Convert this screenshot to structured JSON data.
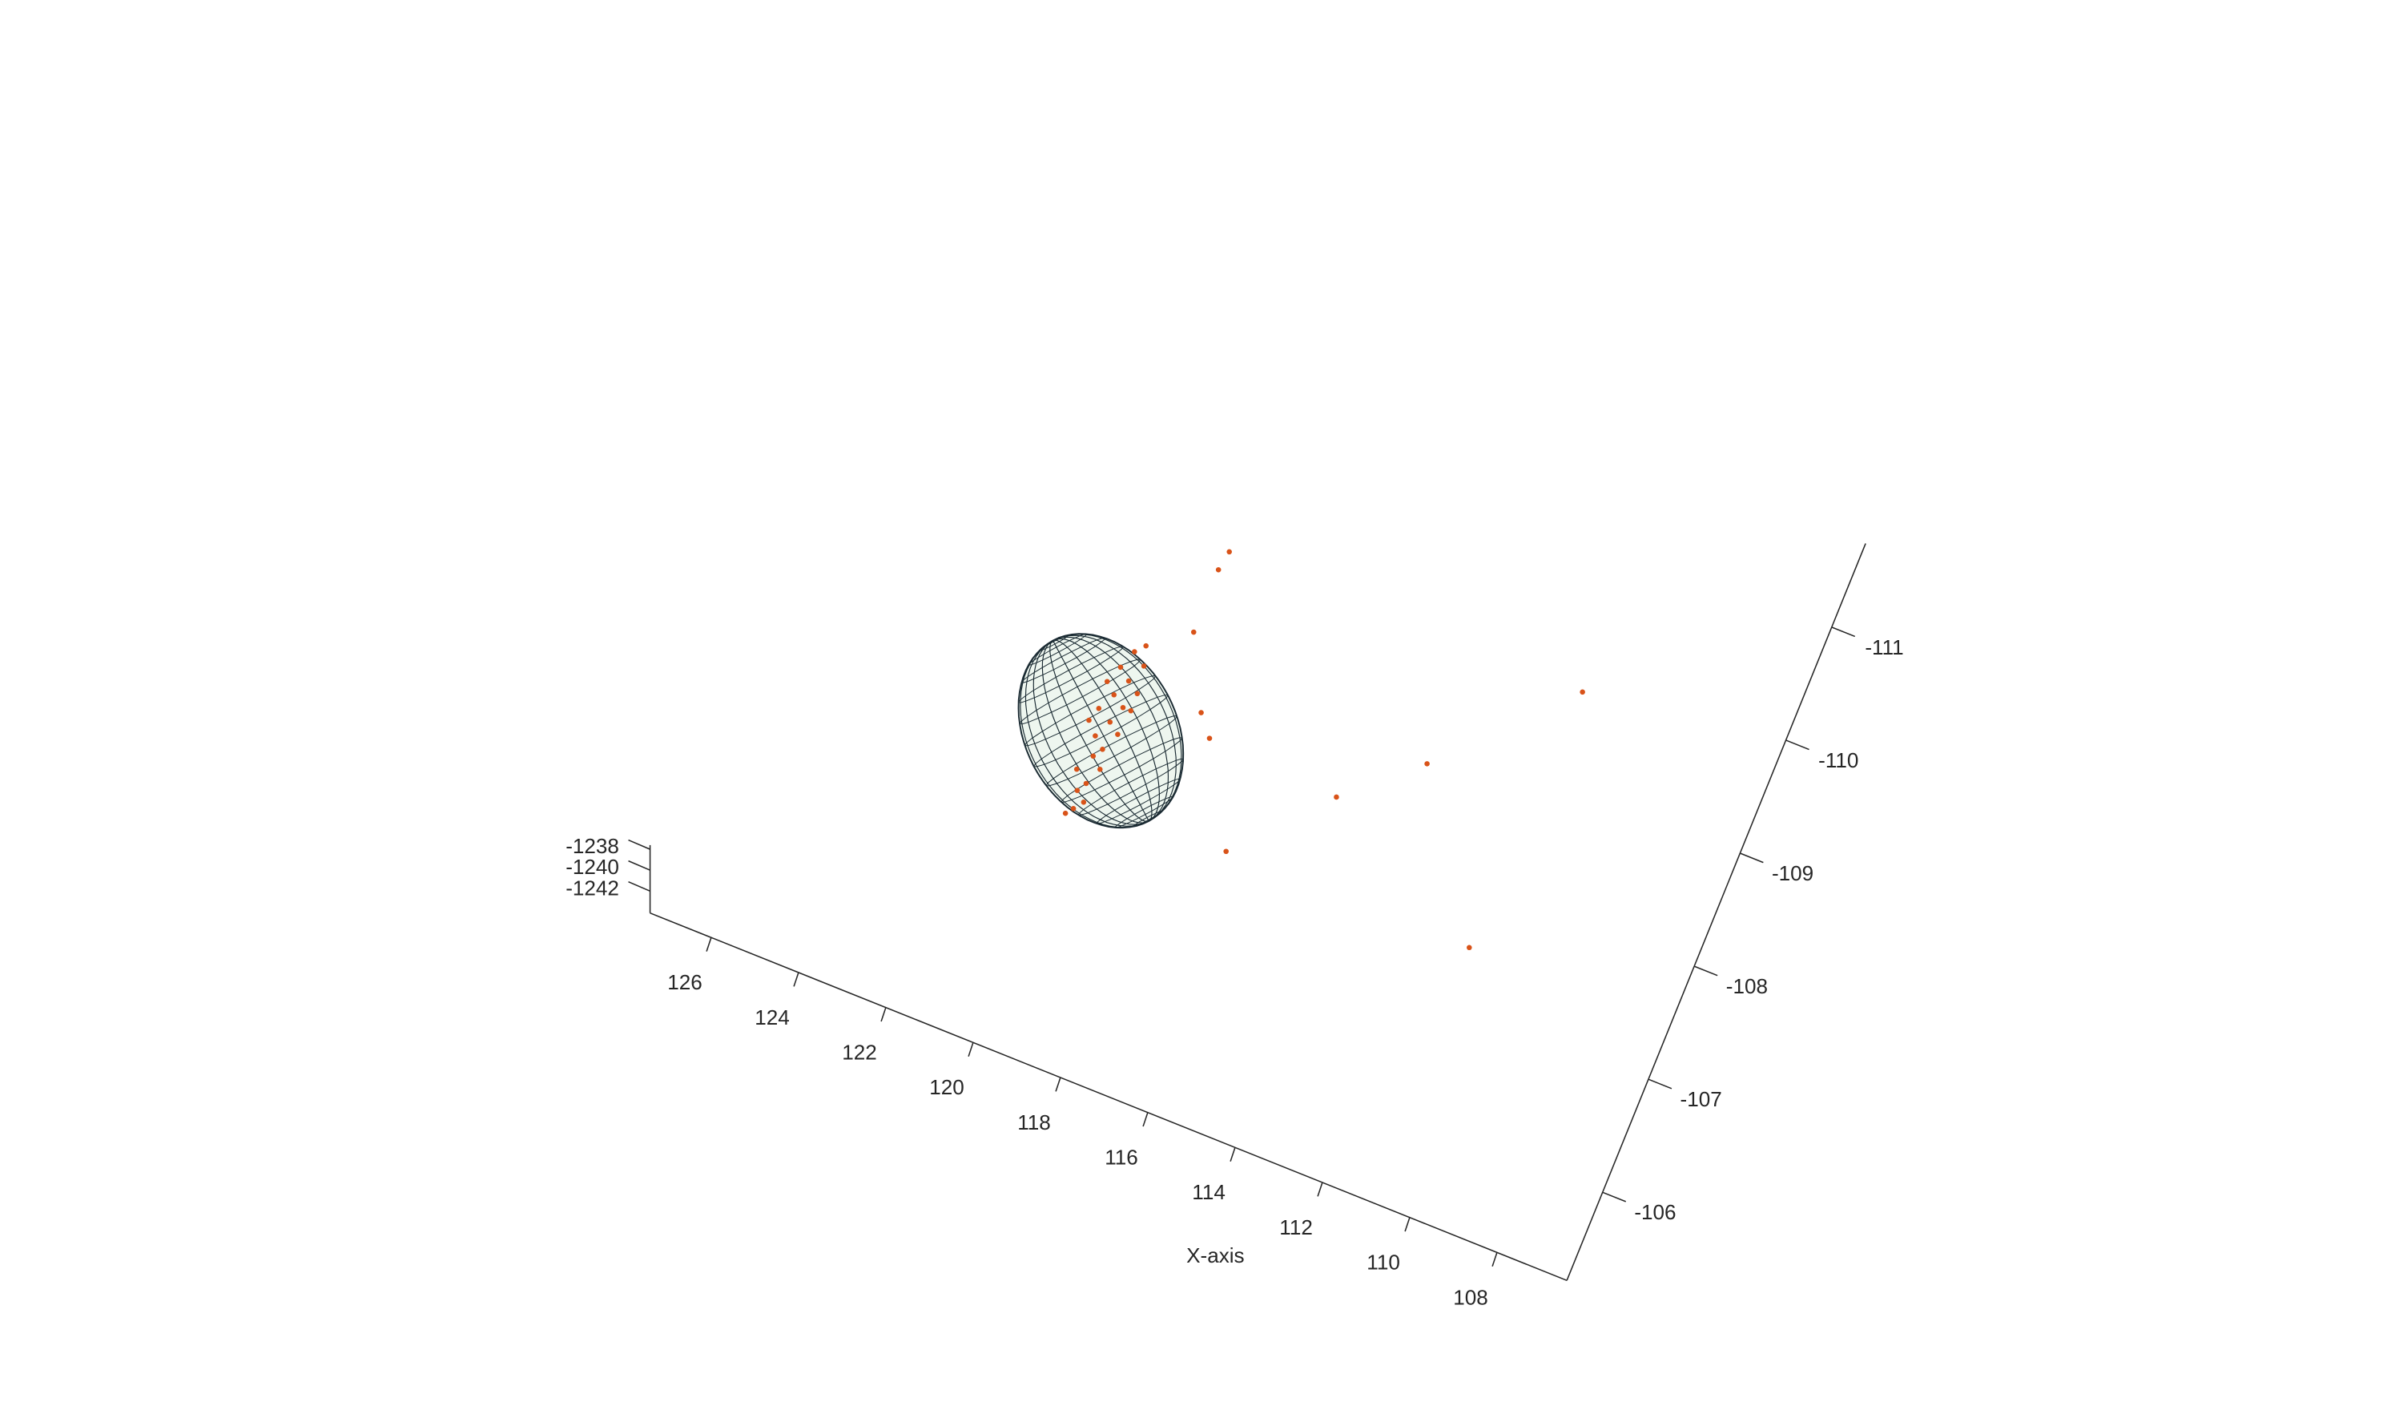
{
  "chart_data": {
    "type": "scatter3d",
    "xlabel": "X-axis",
    "xlim": [
      106.4,
      127.4
    ],
    "ylim": [
      -111.74,
      -105.22
    ],
    "zlim": [
      -1244.1,
      -1237.6
    ],
    "xticks": [
      108,
      110,
      112,
      114,
      116,
      118,
      120,
      122,
      124,
      126
    ],
    "yticks": [
      -111,
      -110,
      -109,
      -108,
      -107,
      -106
    ],
    "zticks": [
      -1242,
      -1240,
      -1238
    ],
    "color": "#d95319",
    "x": [
      118.53,
      118.6,
      118.59,
      110.45,
      112.94,
      114.46,
      116.2,
      110.64,
      117.8,
      117.43,
      119.42,
      119.6,
      119.3,
      119.75,
      119.48,
      119.21,
      119.66,
      119.38,
      119.85,
      119.52,
      119.27,
      119.7,
      119.45,
      119.58,
      119.34,
      119.8,
      119.5,
      119.62,
      119.4,
      119.55,
      119.67,
      119.2,
      119.9,
      119.95
    ],
    "y": [
      -109.41,
      -109.24,
      -108.69,
      -109.42,
      -108.4,
      -107.87,
      -107.12,
      -107.13,
      -108.1,
      -107.93,
      -108.44,
      -108.36,
      -108.28,
      -108.2,
      -108.12,
      -108.05,
      -107.97,
      -107.9,
      -107.82,
      -107.75,
      -107.68,
      -107.6,
      -107.52,
      -107.44,
      -107.36,
      -107.29,
      -107.21,
      -107.13,
      -107.06,
      -106.98,
      -106.92,
      -107.9,
      -108.05,
      -107.7
    ],
    "z": [
      -1240,
      -1240,
      -1240,
      -1240,
      -1240,
      -1240,
      -1240,
      -1240,
      -1240,
      -1240,
      -1240,
      -1240,
      -1240,
      -1240,
      -1240,
      -1240,
      -1240,
      -1240,
      -1240,
      -1240,
      -1240,
      -1240,
      -1240,
      -1240,
      -1240,
      -1240,
      -1240,
      -1240,
      -1240,
      -1240,
      -1240,
      -1240,
      -1240,
      -1240
    ]
  }
}
